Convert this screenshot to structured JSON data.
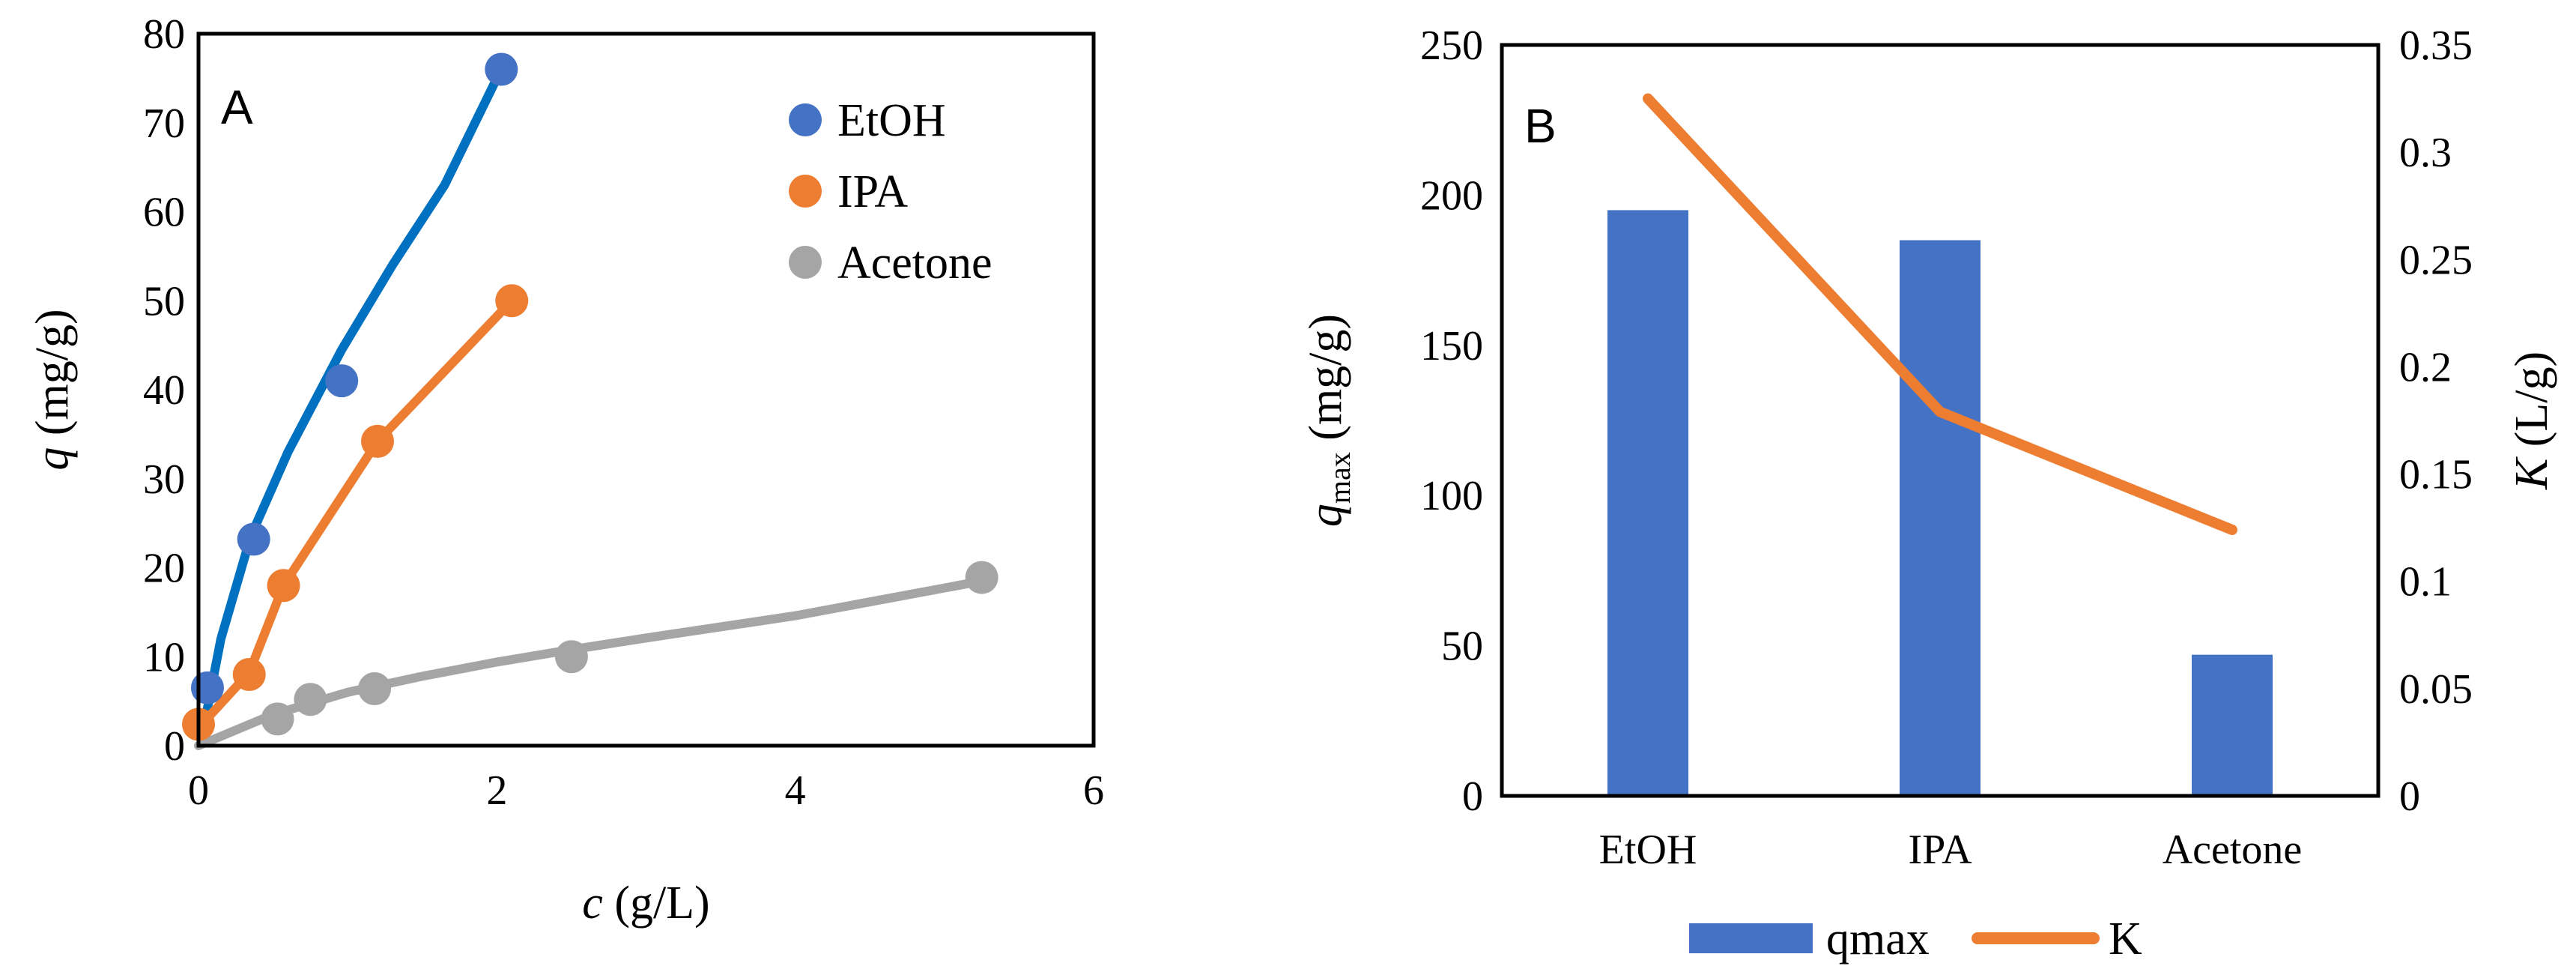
{
  "chart_data": [
    {
      "type": "scatter",
      "panel_label": "A",
      "title": "",
      "xlabel_var": "c",
      "xlabel_unit": " (g/L)",
      "ylabel_var": "q",
      "ylabel_unit": " (mg/g)",
      "xlim": [
        0,
        6
      ],
      "ylim": [
        0,
        80
      ],
      "xticks": [
        0,
        2,
        4,
        6
      ],
      "yticks": [
        0,
        10,
        20,
        30,
        40,
        50,
        60,
        70,
        80
      ],
      "grid": false,
      "legend_position": "top-right",
      "series": [
        {
          "name": "EtOH",
          "marker_color": "#4472C4",
          "line_color": "#0070C0",
          "points": [
            [
              0.06,
              6.5
            ],
            [
              0.37,
              23.2
            ],
            [
              0.96,
              41.0
            ],
            [
              2.03,
              76.0
            ]
          ],
          "fit": [
            [
              0.04,
              2.5
            ],
            [
              0.15,
              12.0
            ],
            [
              0.35,
              23.5
            ],
            [
              0.6,
              33.0
            ],
            [
              0.96,
              44.5
            ],
            [
              1.3,
              54.0
            ],
            [
              1.65,
              63.0
            ],
            [
              2.0,
              75.0
            ]
          ]
        },
        {
          "name": "IPA",
          "marker_color": "#ED7D31",
          "line_color": "#ED7D31",
          "points": [
            [
              0.0,
              2.4
            ],
            [
              0.34,
              8.0
            ],
            [
              0.57,
              18.0
            ],
            [
              1.2,
              34.2
            ],
            [
              2.1,
              50.0
            ]
          ],
          "fit": [
            [
              0.0,
              2.0
            ],
            [
              0.34,
              8.2
            ],
            [
              0.57,
              18.0
            ],
            [
              1.2,
              34.2
            ],
            [
              2.1,
              50.0
            ]
          ]
        },
        {
          "name": "Acetone",
          "marker_color": "#A5A5A5",
          "line_color": "#A5A5A5",
          "points": [
            [
              0.53,
              3.0
            ],
            [
              0.75,
              5.2
            ],
            [
              1.18,
              6.4
            ],
            [
              2.5,
              10.0
            ],
            [
              5.25,
              18.9
            ]
          ],
          "fit": [
            [
              0.0,
              0.0
            ],
            [
              0.5,
              3.5
            ],
            [
              1.0,
              6.0
            ],
            [
              1.5,
              7.8
            ],
            [
              2.0,
              9.4
            ],
            [
              2.5,
              10.8
            ],
            [
              3.0,
              12.1
            ],
            [
              4.0,
              14.6
            ],
            [
              5.25,
              18.5
            ]
          ]
        }
      ]
    },
    {
      "type": "bar",
      "panel_label": "B",
      "title": "",
      "categories": [
        "EtOH",
        "IPA",
        "Acetone"
      ],
      "ylabel_var": "q",
      "ylabel_sub": "max",
      "ylabel_unit": " (mg/g)",
      "y2label_var": "K",
      "y2label_unit": " (L/g)",
      "ylim": [
        0,
        250
      ],
      "yticks": [
        0,
        50,
        100,
        150,
        200,
        250
      ],
      "y2lim": [
        0,
        0.35
      ],
      "y2ticks": [
        "0",
        "0.05",
        "0.1",
        "0.15",
        "0.2",
        "0.25",
        "0.3",
        "0.35"
      ],
      "grid": false,
      "legend_position": "bottom",
      "series": [
        {
          "name": "qmax",
          "type": "bar",
          "axis": "left",
          "color": "#4472C4",
          "values": [
            195,
            185,
            47
          ]
        },
        {
          "name": "K",
          "type": "line",
          "axis": "right",
          "color": "#ED7D31",
          "values": [
            0.325,
            0.179,
            0.124
          ]
        }
      ]
    }
  ]
}
